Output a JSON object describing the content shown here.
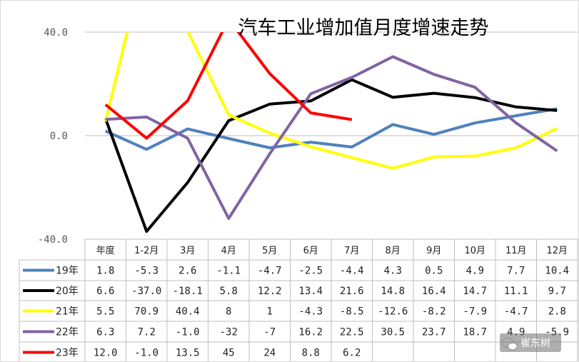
{
  "chart_data": {
    "type": "line",
    "title": "汽车工业增加值月度增速走势",
    "y_tick_labels": [
      "40.0",
      "0.0",
      "-40.0"
    ],
    "y_ticks": [
      40,
      0,
      -40
    ],
    "ylim": [
      -40,
      40
    ],
    "grid": true,
    "categories": [
      "年度",
      "1-2月",
      "3月",
      "4月",
      "5月",
      "6月",
      "7月",
      "8月",
      "9月",
      "10月",
      "11月",
      "12月"
    ],
    "series": [
      {
        "name": "19年",
        "color": "#4f81bd",
        "values": [
          1.8,
          -5.3,
          2.6,
          -1.1,
          -4.7,
          -2.5,
          -4.4,
          4.3,
          0.5,
          4.9,
          7.7,
          10.4
        ],
        "labels": [
          "1.8",
          "-5.3",
          "2.6",
          "-1.1",
          "-4.7",
          "-2.5",
          "-4.4",
          "4.3",
          "0.5",
          "4.9",
          "7.7",
          "10.4"
        ]
      },
      {
        "name": "20年",
        "color": "#000000",
        "values": [
          6.6,
          -37.0,
          -18.1,
          5.8,
          12.2,
          13.4,
          21.6,
          14.8,
          16.4,
          14.7,
          11.1,
          9.7
        ],
        "labels": [
          "6.6",
          "-37.0",
          "-18.1",
          "5.8",
          "12.2",
          "13.4",
          "21.6",
          "14.8",
          "16.4",
          "14.7",
          "11.1",
          "9.7"
        ]
      },
      {
        "name": "21年",
        "color": "#ffff00",
        "values": [
          5.5,
          70.9,
          40.4,
          8,
          1,
          -4.3,
          -8.5,
          -12.6,
          -8.2,
          -7.9,
          -4.7,
          2.8
        ],
        "labels": [
          "5.5",
          "70.9",
          "40.4",
          "8",
          "1",
          "-4.3",
          "-8.5",
          "-12.6",
          "-8.2",
          "-7.9",
          "-4.7",
          "2.8"
        ]
      },
      {
        "name": "22年",
        "color": "#8064a2",
        "values": [
          6.3,
          7.2,
          -1.0,
          -32,
          -7,
          16.2,
          22.5,
          30.5,
          23.7,
          18.7,
          4.9,
          -5.9
        ],
        "labels": [
          "6.3",
          "7.2",
          "-1.0",
          "-32",
          "-7",
          "16.2",
          "22.5",
          "30.5",
          "23.7",
          "18.7",
          "4.9",
          "-5.9"
        ]
      },
      {
        "name": "23年",
        "color": "#ff0000",
        "values": [
          12.0,
          -1.0,
          13.5,
          45,
          24,
          8.8,
          6.2,
          null,
          null,
          null,
          null,
          null
        ],
        "labels": [
          "12.0",
          "-1.0",
          "13.5",
          "45",
          "24",
          "8.8",
          "6.2",
          "",
          "",
          "",
          "",
          ""
        ]
      }
    ]
  },
  "watermark": {
    "text": "崔东树",
    "icon": "wechat-icon"
  }
}
